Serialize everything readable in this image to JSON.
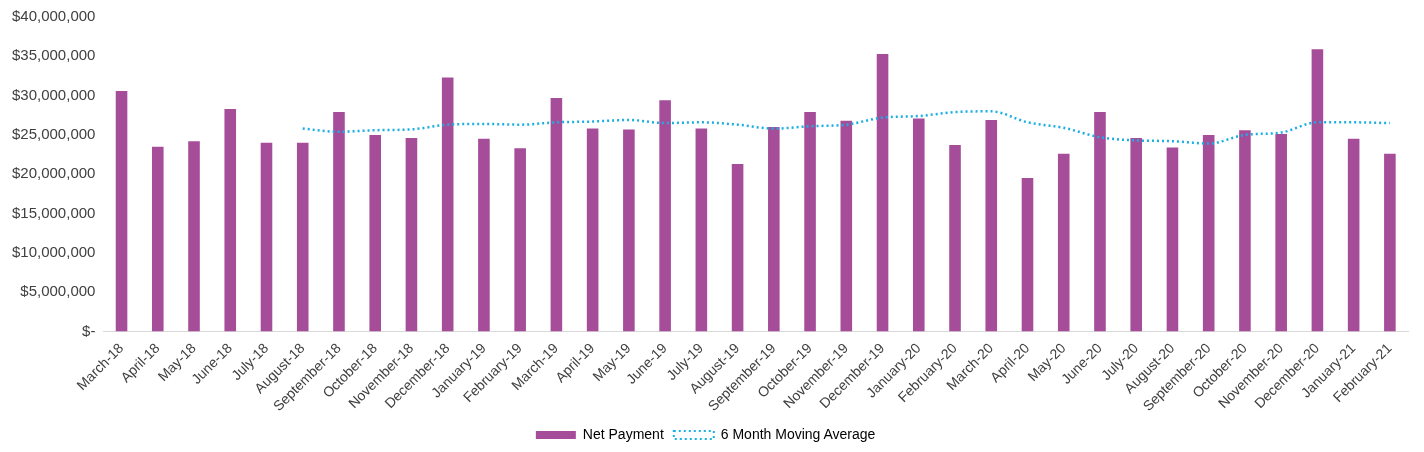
{
  "chart_data": {
    "type": "bar",
    "categories": [
      "March-18",
      "April-18",
      "May-18",
      "June-18",
      "July-18",
      "August-18",
      "September-18",
      "October-18",
      "November-18",
      "December-18",
      "January-19",
      "February-19",
      "March-19",
      "April-19",
      "May-19",
      "June-19",
      "July-19",
      "August-19",
      "September-19",
      "October-19",
      "November-19",
      "December-19",
      "January-20",
      "February-20",
      "March-20",
      "April-20",
      "May-20",
      "June-20",
      "July-20",
      "August-20",
      "September-20",
      "October-20",
      "November-20",
      "December-20",
      "January-21",
      "February-21"
    ],
    "series": [
      {
        "name": "Net Payment",
        "color": "#a64d9a",
        "values": [
          30600000,
          23500000,
          24200000,
          28300000,
          24000000,
          24000000,
          27900000,
          25000000,
          24600000,
          32300000,
          24500000,
          23300000,
          29700000,
          25800000,
          25700000,
          29400000,
          25800000,
          21300000,
          26000000,
          27900000,
          26800000,
          35300000,
          27100000,
          23700000,
          26900000,
          19500000,
          22600000,
          27900000,
          24600000,
          23400000,
          25000000,
          25600000,
          25100000,
          35900000,
          24500000,
          22600000
        ]
      },
      {
        "name": "6 Month Moving Average",
        "type": "line",
        "color": "#1aaee3",
        "line_style": "dotted",
        "marker": "none",
        "values": [
          null,
          null,
          null,
          null,
          null,
          25800000,
          25400000,
          25600000,
          25700000,
          26300000,
          26400000,
          26300000,
          26600000,
          26700000,
          26900000,
          26500000,
          26600000,
          26300000,
          25800000,
          26100000,
          26300000,
          27200000,
          27400000,
          27900000,
          28000000,
          26600000,
          25900000,
          24700000,
          24300000,
          24200000,
          23900000,
          25000000,
          25300000,
          26600000,
          26600000,
          26500000
        ]
      }
    ],
    "ylim": [
      0,
      40000000
    ],
    "yticks": [
      {
        "value": 0,
        "label": "$-"
      },
      {
        "value": 5000000,
        "label": "$5,000,000"
      },
      {
        "value": 10000000,
        "label": "$10,000,000"
      },
      {
        "value": 15000000,
        "label": "$15,000,000"
      },
      {
        "value": 20000000,
        "label": "$20,000,000"
      },
      {
        "value": 25000000,
        "label": "$25,000,000"
      },
      {
        "value": 30000000,
        "label": "$30,000,000"
      },
      {
        "value": 35000000,
        "label": "$35,000,000"
      },
      {
        "value": 40000000,
        "label": "$40,000,000"
      }
    ],
    "grid": false,
    "legend": "bottom"
  }
}
